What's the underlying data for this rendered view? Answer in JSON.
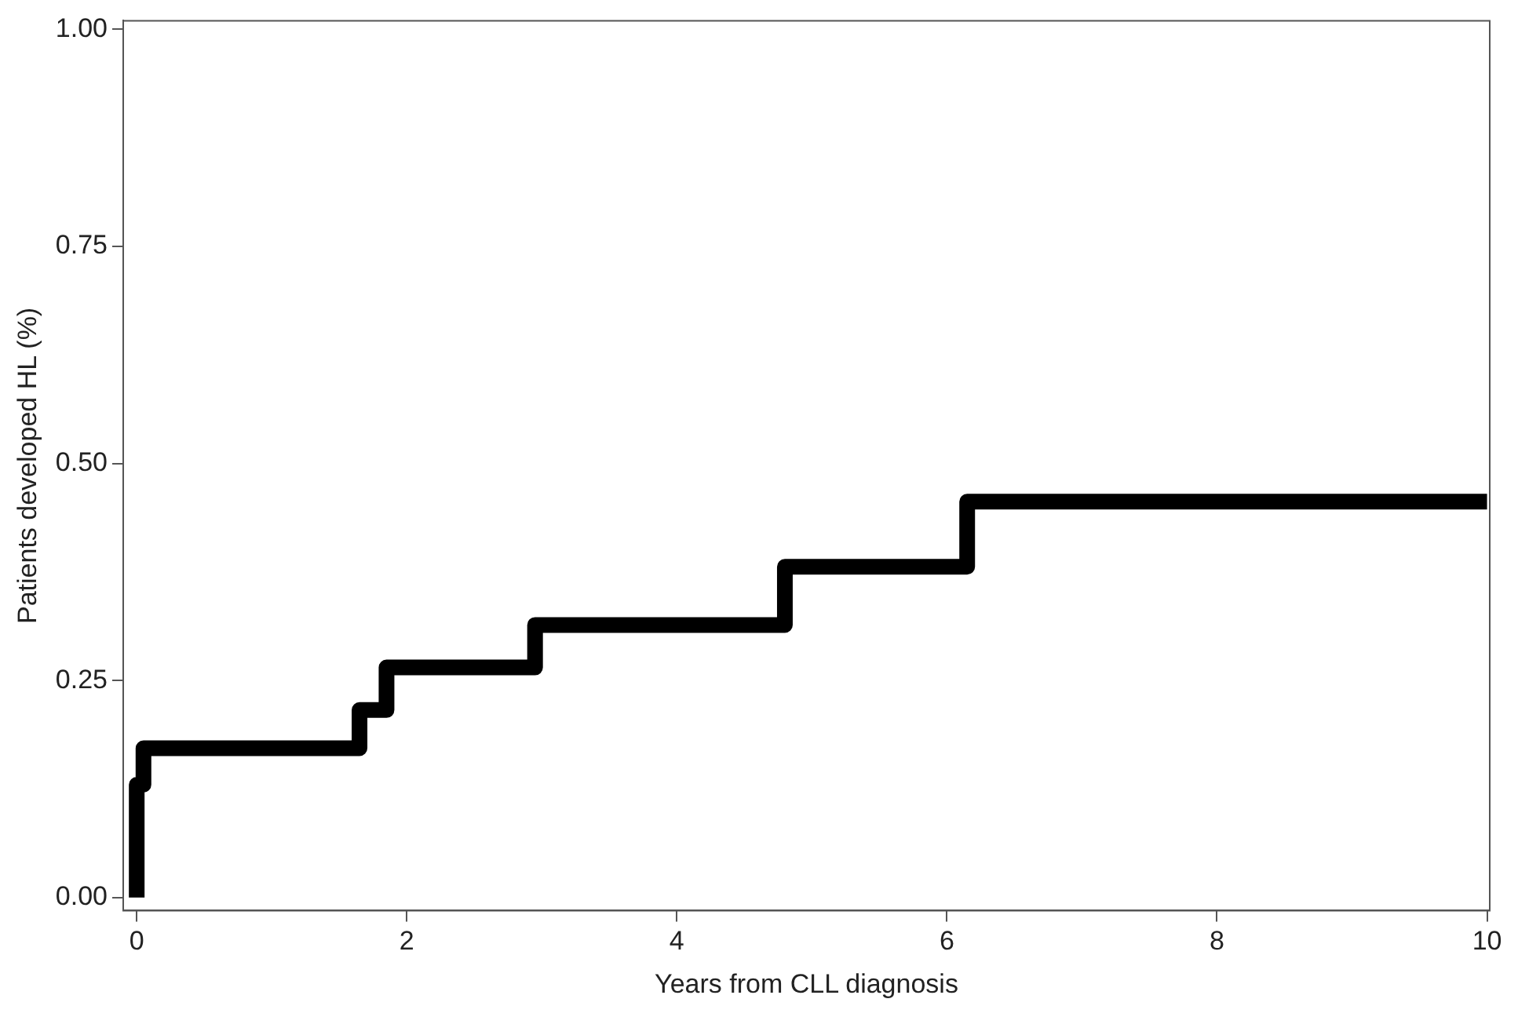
{
  "chart_data": {
    "type": "step",
    "xlabel": "Years from CLL diagnosis",
    "ylabel": "Patients developed HL (%)",
    "x": [
      0,
      0,
      0.05,
      1.65,
      1.85,
      2.95,
      4.8,
      6.15,
      10
    ],
    "series": [
      {
        "color": "#000000",
        "values": [
          0,
          0.13,
          0.172,
          0.216,
          0.265,
          0.314,
          0.381,
          0.456,
          0.456
        ]
      }
    ],
    "xlim": [
      -0.1,
      10.02
    ],
    "xticks": [
      0,
      2,
      4,
      6,
      8,
      10
    ],
    "ylim": [
      -0.015,
      1.01
    ],
    "yticks": [
      {
        "value": 0,
        "label": "0.00"
      },
      {
        "value": 0.25,
        "label": "0.25"
      },
      {
        "value": 0.5,
        "label": "0.50"
      },
      {
        "value": 0.75,
        "label": "0.75"
      },
      {
        "value": 1,
        "label": "1.00"
      }
    ],
    "grid": false,
    "legend": false,
    "marker": "none",
    "line_style": "solid"
  }
}
